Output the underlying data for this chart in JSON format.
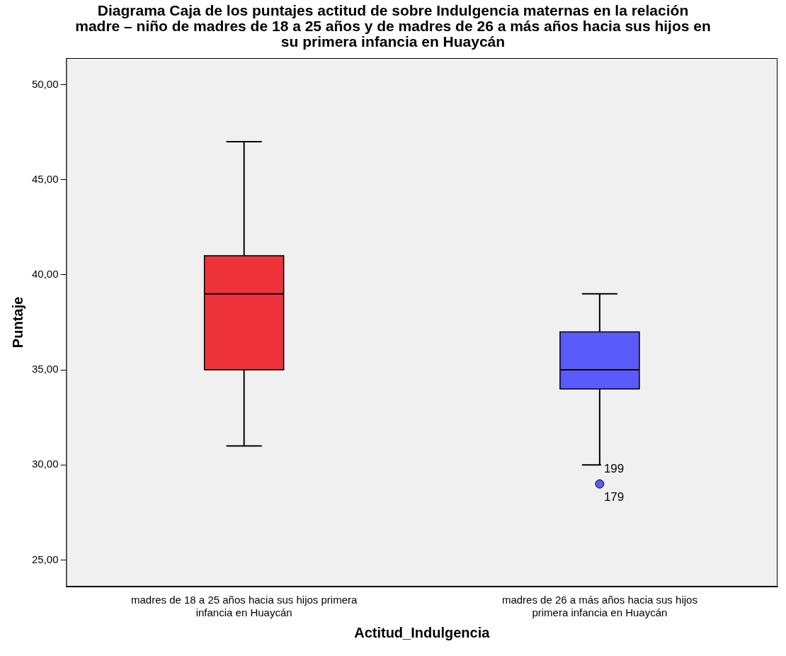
{
  "chart_data": {
    "type": "box",
    "title": "Diagrama Caja de los puntajes actitud de sobre Indulgencia maternas en la relación madre – niño de madres de 18 a 25 años y de madres de 26 a más años hacia sus hijos en su primera infancia en Huaycán",
    "xlabel": "Actitud_Indulgencia",
    "ylabel": "Puntaje",
    "categories": [
      "madres de 18 a 25 años hacia sus hijos primera infancia en Huaycán",
      "madres de 26 a más años hacia sus hijos primera infancia en Huaycán"
    ],
    "colors": [
      "#ee3239",
      "#5b5bfb"
    ],
    "boxes": [
      {
        "low": 31,
        "q1": 35,
        "median": 39,
        "q3": 41,
        "high": 47
      },
      {
        "low": 30,
        "q1": 34,
        "median": 35,
        "q3": 37,
        "high": 39,
        "outliers": [
          29
        ]
      }
    ],
    "annotations": [
      "199",
      "179"
    ],
    "ylim": [
      23.6,
      51.4
    ],
    "yticks": [
      {
        "value": 25,
        "label": "25,00"
      },
      {
        "value": 30,
        "label": "30,00"
      },
      {
        "value": 35,
        "label": "35,00"
      },
      {
        "value": 40,
        "label": "40,00"
      },
      {
        "value": 45,
        "label": "45,00"
      },
      {
        "value": 50,
        "label": "50,00"
      }
    ],
    "grid": false,
    "legend": false
  }
}
